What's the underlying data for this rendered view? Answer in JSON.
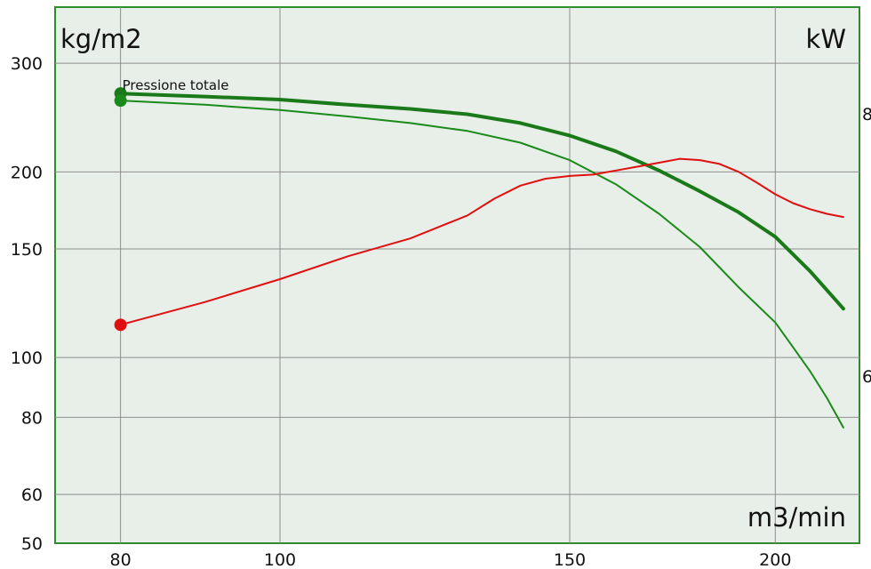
{
  "chart_data": {
    "type": "line",
    "title": "",
    "xlabel": "m3/min",
    "ylabel": "kg/m2",
    "ylabel_right": "kW",
    "xscale": "log",
    "yscale": "log",
    "xlim": [
      73,
      225
    ],
    "ylim": [
      50,
      370
    ],
    "x_ticks": [
      80,
      100,
      150,
      200
    ],
    "y_ticks": [
      50,
      60,
      80,
      100,
      150,
      200,
      300
    ],
    "right_ticks_visible": [
      "8",
      "6"
    ],
    "grid": true,
    "colors": {
      "background": "#e8efe8",
      "frame": "#2e8b2e",
      "grid": "#8e8e8e"
    },
    "annotations": [
      {
        "text": "Pressione totale",
        "x": 80,
        "y": 268
      }
    ],
    "series": [
      {
        "color": "#1a7a1a",
        "width": 4,
        "marker_at_start": true,
        "x": [
          80,
          90,
          100,
          110,
          120,
          130,
          140,
          150,
          160,
          170,
          180,
          190,
          200,
          210,
          220
        ],
        "y": [
          268,
          265,
          262,
          257,
          253,
          248,
          240,
          229,
          216,
          201,
          186,
          172,
          157,
          138,
          120
        ]
      },
      {
        "color": "#1a8a1a",
        "width": 2,
        "marker_at_start": true,
        "x": [
          80,
          90,
          100,
          110,
          120,
          130,
          140,
          150,
          160,
          170,
          180,
          190,
          200,
          205,
          210,
          215,
          220
        ],
        "y": [
          261,
          257,
          252,
          246,
          240,
          233,
          223,
          209,
          191,
          171,
          151,
          130,
          114,
          104,
          95,
          86,
          77
        ]
      },
      {
        "color": "#e01010",
        "width": 2,
        "marker_at_start": true,
        "x": [
          80,
          90,
          100,
          110,
          120,
          130,
          135,
          140,
          145,
          150,
          155,
          160,
          165,
          170,
          175,
          180,
          185,
          190,
          195,
          200,
          205,
          210,
          215,
          220
        ],
        "y": [
          113,
          123,
          134,
          146,
          156,
          170,
          181,
          190,
          195,
          197,
          198,
          201,
          204,
          207,
          210,
          209,
          206,
          200,
          192,
          184,
          178,
          174,
          171,
          169
        ]
      }
    ]
  }
}
